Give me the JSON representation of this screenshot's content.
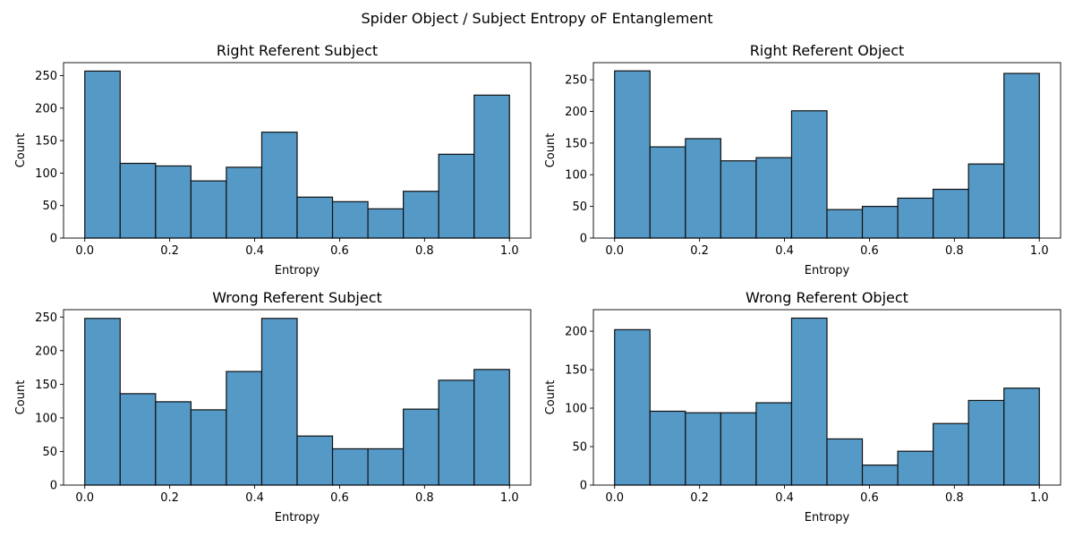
{
  "figure": {
    "suptitle": "Spider Object / Subject Entropy oF Entanglement"
  },
  "colors": {
    "bar_fill": "#5599c7",
    "bar_edge": "#111111"
  },
  "chart_data": [
    {
      "type": "bar",
      "subtype": "histogram",
      "title": "Right Referent Subject",
      "xlabel": "Entropy",
      "ylabel": "Count",
      "bin_edges": [
        0,
        0.0833,
        0.1667,
        0.25,
        0.3333,
        0.4167,
        0.5,
        0.5833,
        0.6667,
        0.75,
        0.8333,
        0.9167,
        1.0
      ],
      "values": [
        257,
        115,
        111,
        88,
        109,
        163,
        63,
        56,
        45,
        72,
        129,
        220
      ],
      "xlim": [
        -0.05,
        1.05
      ],
      "ylim": [
        0,
        270
      ],
      "xticks": [
        "0.0",
        "0.2",
        "0.4",
        "0.6",
        "0.8",
        "1.0"
      ],
      "yticks": [
        "0",
        "50",
        "100",
        "150",
        "200",
        "250"
      ]
    },
    {
      "type": "bar",
      "subtype": "histogram",
      "title": "Right Referent Object",
      "xlabel": "Entropy",
      "ylabel": "Count",
      "bin_edges": [
        0,
        0.0833,
        0.1667,
        0.25,
        0.3333,
        0.4167,
        0.5,
        0.5833,
        0.6667,
        0.75,
        0.8333,
        0.9167,
        1.0
      ],
      "values": [
        264,
        144,
        157,
        122,
        127,
        201,
        45,
        50,
        63,
        77,
        117,
        260
      ],
      "xlim": [
        -0.05,
        1.05
      ],
      "ylim": [
        0,
        277
      ],
      "xticks": [
        "0.0",
        "0.2",
        "0.4",
        "0.6",
        "0.8",
        "1.0"
      ],
      "yticks": [
        "0",
        "50",
        "100",
        "150",
        "200",
        "250"
      ]
    },
    {
      "type": "bar",
      "subtype": "histogram",
      "title": "Wrong Referent Subject",
      "xlabel": "Entropy",
      "ylabel": "Count",
      "bin_edges": [
        0,
        0.0833,
        0.1667,
        0.25,
        0.3333,
        0.4167,
        0.5,
        0.5833,
        0.6667,
        0.75,
        0.8333,
        0.9167,
        1.0
      ],
      "values": [
        248,
        136,
        124,
        112,
        169,
        248,
        73,
        54,
        54,
        113,
        156,
        172
      ],
      "xlim": [
        -0.05,
        1.05
      ],
      "ylim": [
        0,
        261
      ],
      "xticks": [
        "0.0",
        "0.2",
        "0.4",
        "0.6",
        "0.8",
        "1.0"
      ],
      "yticks": [
        "0",
        "50",
        "100",
        "150",
        "200",
        "250"
      ]
    },
    {
      "type": "bar",
      "subtype": "histogram",
      "title": "Wrong Referent Object",
      "xlabel": "Entropy",
      "ylabel": "Count",
      "bin_edges": [
        0,
        0.0833,
        0.1667,
        0.25,
        0.3333,
        0.4167,
        0.5,
        0.5833,
        0.6667,
        0.75,
        0.8333,
        0.9167,
        1.0
      ],
      "values": [
        202,
        96,
        94,
        94,
        107,
        217,
        60,
        26,
        44,
        80,
        110,
        126
      ],
      "xlim": [
        -0.05,
        1.05
      ],
      "ylim": [
        0,
        228
      ],
      "xticks": [
        "0.0",
        "0.2",
        "0.4",
        "0.6",
        "0.8",
        "1.0"
      ],
      "yticks": [
        "0",
        "50",
        "100",
        "150",
        "200"
      ]
    }
  ]
}
